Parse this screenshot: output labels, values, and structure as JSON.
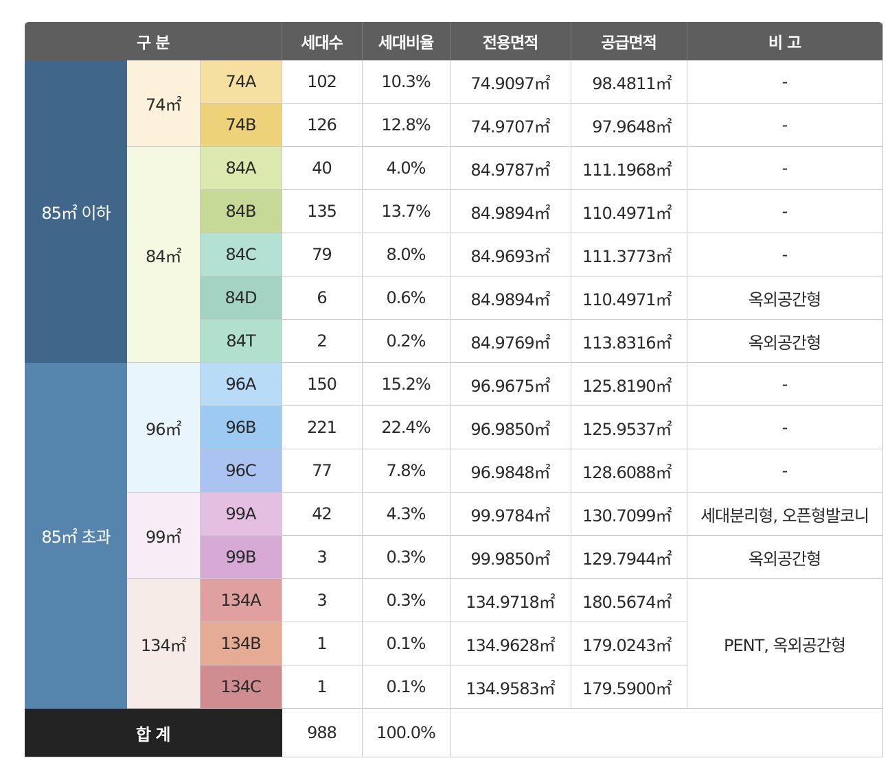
{
  "table": {
    "headers": {
      "category": "구 분",
      "households": "세대수",
      "ratio": "세대비율",
      "exclusive_area": "전용면적",
      "supply_area": "공급면적",
      "remarks": "비 고"
    },
    "groups": [
      {
        "label": "85㎡ 이하",
        "color": "#406689"
      },
      {
        "label": "85㎡ 초과",
        "color": "#5585ad"
      }
    ],
    "sizes": [
      {
        "label": "74㎡",
        "color": "#fbf2d9"
      },
      {
        "label": "84㎡",
        "color": "#f5f9e2"
      },
      {
        "label": "96㎡",
        "color": "#e9f5fd"
      },
      {
        "label": "99㎡",
        "color": "#f8edf7"
      },
      {
        "label": "134㎡",
        "color": "#f7ebe7"
      }
    ],
    "rows": [
      {
        "type": "74A",
        "type_color": "#f5e0a2",
        "households": "102",
        "ratio": "10.3%",
        "exclusive": "74.9097㎡",
        "supply": "98.4811㎡",
        "remark": "-"
      },
      {
        "type": "74B",
        "type_color": "#edd27a",
        "households": "126",
        "ratio": "12.8%",
        "exclusive": "74.9707㎡",
        "supply": "97.9648㎡",
        "remark": "-"
      },
      {
        "type": "84A",
        "type_color": "#dbe9af",
        "households": "40",
        "ratio": "4.0%",
        "exclusive": "84.9787㎡",
        "supply": "111.1968㎡",
        "remark": "-"
      },
      {
        "type": "84B",
        "type_color": "#c7d997",
        "households": "135",
        "ratio": "13.7%",
        "exclusive": "84.9894㎡",
        "supply": "110.4971㎡",
        "remark": "-"
      },
      {
        "type": "84C",
        "type_color": "#b3e1d3",
        "households": "79",
        "ratio": "8.0%",
        "exclusive": "84.9693㎡",
        "supply": "111.3773㎡",
        "remark": "-"
      },
      {
        "type": "84D",
        "type_color": "#a2d3c3",
        "households": "6",
        "ratio": "0.6%",
        "exclusive": "84.9894㎡",
        "supply": "110.4971㎡",
        "remark": "옥외공간형"
      },
      {
        "type": "84T",
        "type_color": "#b2e0cf",
        "households": "2",
        "ratio": "0.2%",
        "exclusive": "84.9769㎡",
        "supply": "113.8316㎡",
        "remark": "옥외공간형"
      },
      {
        "type": "96A",
        "type_color": "#b8dcf8",
        "households": "150",
        "ratio": "15.2%",
        "exclusive": "96.9675㎡",
        "supply": "125.8190㎡",
        "remark": "-"
      },
      {
        "type": "96B",
        "type_color": "#9ccaf0",
        "households": "221",
        "ratio": "22.4%",
        "exclusive": "96.9850㎡",
        "supply": "125.9537㎡",
        "remark": "-"
      },
      {
        "type": "96C",
        "type_color": "#aac3f0",
        "households": "77",
        "ratio": "7.8%",
        "exclusive": "96.9848㎡",
        "supply": "128.6088㎡",
        "remark": "-"
      },
      {
        "type": "99A",
        "type_color": "#e5bfe2",
        "households": "42",
        "ratio": "4.3%",
        "exclusive": "99.9784㎡",
        "supply": "130.7099㎡",
        "remark": "세대분리형, 오픈형발코니"
      },
      {
        "type": "99B",
        "type_color": "#d7aad5",
        "households": "3",
        "ratio": "0.3%",
        "exclusive": "99.9850㎡",
        "supply": "129.7944㎡",
        "remark": "옥외공간형"
      },
      {
        "type": "134A",
        "type_color": "#dfa09f",
        "households": "3",
        "ratio": "0.3%",
        "exclusive": "134.9718㎡",
        "supply": "180.5674㎡",
        "remark": "PENT, 옥외공간형"
      },
      {
        "type": "134B",
        "type_color": "#e5ab94",
        "households": "1",
        "ratio": "0.1%",
        "exclusive": "134.9628㎡",
        "supply": "179.0243㎡",
        "remark": ""
      },
      {
        "type": "134C",
        "type_color": "#cf8d91",
        "households": "1",
        "ratio": "0.1%",
        "exclusive": "134.9583㎡",
        "supply": "179.5900㎡",
        "remark": ""
      }
    ],
    "total": {
      "label": "합 계",
      "households": "988",
      "ratio": "100.0%"
    }
  }
}
